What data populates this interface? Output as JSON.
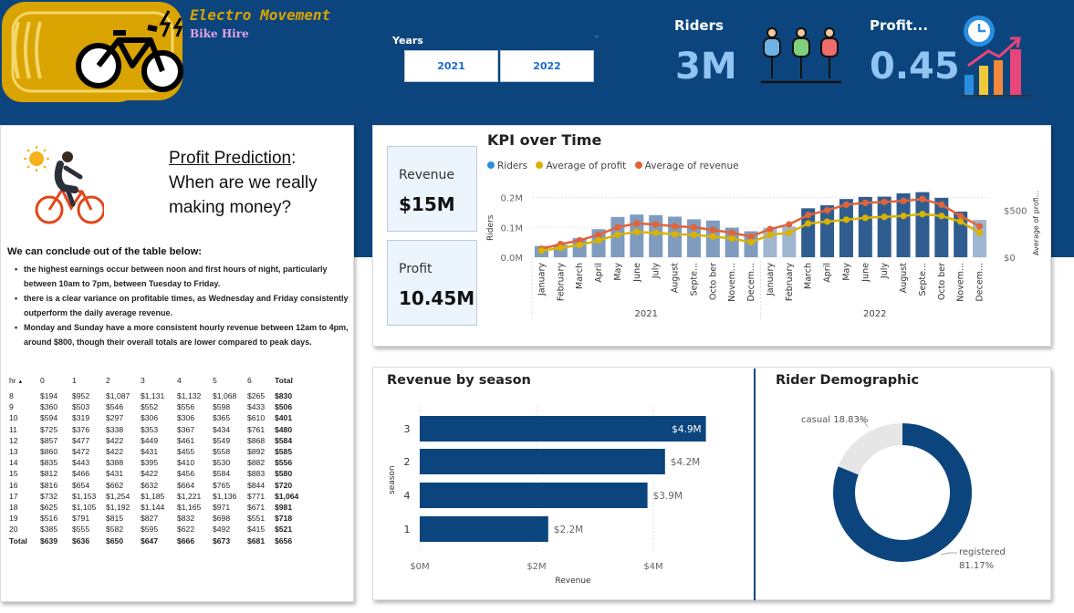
{
  "header": {
    "brand_title": "Electro Movement",
    "brand_subtitle": "Bike Hire",
    "years_label": "Years",
    "year_buttons": [
      "2021",
      "2022"
    ],
    "riders_label": "Riders",
    "riders_value": "3M",
    "profit_label": "Profit...",
    "profit_value": "0.45"
  },
  "profit_prediction": {
    "title_underlined": "Profit Prediction",
    "title_rest": ":",
    "title_line2": "When are we really making money?",
    "conclusion": "We can conclude out of the table below:",
    "bullets": [
      "the highest earnings occur between noon and first hours of night, particularly between 10am to 7pm, between Tuesday to Friday.",
      "there is a clear variance on profitable times, as Wednesday and Friday consistently outperform the daily average revenue.",
      "Monday and Sunday have a more consistent hourly revenue between 12am to 4pm, around $800, though their overall totals are lower compared to peak days."
    ],
    "table": {
      "headers": [
        "hr",
        "0",
        "1",
        "2",
        "3",
        "4",
        "5",
        "6",
        "Total"
      ],
      "rows": [
        [
          "8",
          "$194",
          "$952",
          "$1,087",
          "$1,131",
          "$1,132",
          "$1,068",
          "$265",
          "$830"
        ],
        [
          "9",
          "$360",
          "$503",
          "$546",
          "$552",
          "$556",
          "$598",
          "$433",
          "$506"
        ],
        [
          "10",
          "$594",
          "$319",
          "$297",
          "$306",
          "$306",
          "$365",
          "$610",
          "$401"
        ],
        [
          "11",
          "$725",
          "$376",
          "$338",
          "$353",
          "$367",
          "$434",
          "$761",
          "$480"
        ],
        [
          "12",
          "$857",
          "$477",
          "$422",
          "$449",
          "$461",
          "$549",
          "$868",
          "$584"
        ],
        [
          "13",
          "$860",
          "$472",
          "$422",
          "$431",
          "$455",
          "$558",
          "$892",
          "$585"
        ],
        [
          "14",
          "$835",
          "$443",
          "$388",
          "$395",
          "$410",
          "$530",
          "$882",
          "$556"
        ],
        [
          "15",
          "$812",
          "$466",
          "$431",
          "$422",
          "$456",
          "$584",
          "$883",
          "$580"
        ],
        [
          "16",
          "$816",
          "$654",
          "$662",
          "$632",
          "$664",
          "$765",
          "$844",
          "$720"
        ],
        [
          "17",
          "$732",
          "$1,153",
          "$1,254",
          "$1,185",
          "$1,221",
          "$1,136",
          "$771",
          "$1,064"
        ],
        [
          "18",
          "$625",
          "$1,105",
          "$1,192",
          "$1,144",
          "$1,165",
          "$971",
          "$671",
          "$981"
        ],
        [
          "19",
          "$516",
          "$791",
          "$815",
          "$827",
          "$832",
          "$698",
          "$551",
          "$718"
        ],
        [
          "20",
          "$385",
          "$555",
          "$582",
          "$595",
          "$622",
          "$492",
          "$415",
          "$521"
        ]
      ],
      "total_row": [
        "Total",
        "$639",
        "$636",
        "$650",
        "$647",
        "$666",
        "$673",
        "$681",
        "$656"
      ]
    }
  },
  "kpi_cards": {
    "revenue_label": "Revenue",
    "revenue_value": "$15M",
    "profit_label": "Profit",
    "profit_value": "10.45M"
  },
  "colors": {
    "banner": "#0c457d",
    "riders_bar": "#2f5d8f",
    "profit_line": "#d9b300",
    "revenue_line": "#e0633a",
    "season_bar": "#0c457d",
    "casual": "#e6e6e6",
    "registered": "#0c457d",
    "kpi_value": "#91c4f2"
  },
  "chart_data": [
    {
      "type": "bar",
      "title": "KPI over Time",
      "legend": [
        "Riders",
        "Average of profit",
        "Average of revenue"
      ],
      "legend_placement": "top-left",
      "ylabel": "Riders",
      "y2label": "Average of profi...",
      "yticks": [
        "0.0M",
        "0.1M",
        "0.2M"
      ],
      "y2ticks": [
        "$0",
        "$500"
      ],
      "ylim": [
        0,
        0.22
      ],
      "y2lim": [
        0,
        700
      ],
      "grid": true,
      "months": [
        "January",
        "February",
        "March",
        "April",
        "May",
        "June",
        "July",
        "August",
        "Septe...",
        "Octo ber",
        "Novem...",
        "Decem...",
        "January",
        "February",
        "March",
        "April",
        "May",
        "June",
        "July",
        "August",
        "Septe...",
        "Octo ber",
        "Novem...",
        "Decem..."
      ],
      "years": [
        "2021",
        "2022"
      ],
      "series": [
        {
          "name": "Riders",
          "kind": "bar",
          "values": [
            0.038,
            0.042,
            0.064,
            0.094,
            0.135,
            0.143,
            0.141,
            0.136,
            0.127,
            0.123,
            0.099,
            0.087,
            0.098,
            0.103,
            0.164,
            0.174,
            0.195,
            0.202,
            0.203,
            0.214,
            0.218,
            0.199,
            0.153,
            0.125
          ]
        },
        {
          "name": "Average of profit",
          "kind": "line",
          "values": [
            70,
            100,
            130,
            180,
            240,
            270,
            260,
            245,
            240,
            220,
            200,
            160,
            240,
            260,
            360,
            380,
            400,
            420,
            430,
            440,
            460,
            440,
            380,
            260
          ]
        },
        {
          "name": "Average of revenue",
          "kind": "line",
          "values": [
            90,
            140,
            180,
            240,
            320,
            360,
            350,
            330,
            320,
            290,
            260,
            220,
            300,
            350,
            450,
            500,
            560,
            580,
            590,
            600,
            620,
            560,
            440,
            330
          ]
        }
      ]
    },
    {
      "type": "bar",
      "orientation": "horizontal",
      "title": "Revenue by season",
      "xlabel": "Revenue",
      "ylabel": "season",
      "categories": [
        "3",
        "2",
        "4",
        "1"
      ],
      "values": [
        4.9,
        4.2,
        3.9,
        2.2
      ],
      "value_labels": [
        "$4.9M",
        "$4.2M",
        "$3.9M",
        "$2.2M"
      ],
      "xticks": [
        "$0M",
        "$2M",
        "$4M"
      ],
      "xlim": [
        0,
        5
      ]
    },
    {
      "type": "pie",
      "donut": true,
      "title": "Rider Demographic",
      "slices": [
        {
          "label": "casual",
          "pct": "18.83%",
          "value": 18.83
        },
        {
          "label": "registered",
          "pct": "81.17%",
          "value": 81.17
        }
      ]
    }
  ]
}
